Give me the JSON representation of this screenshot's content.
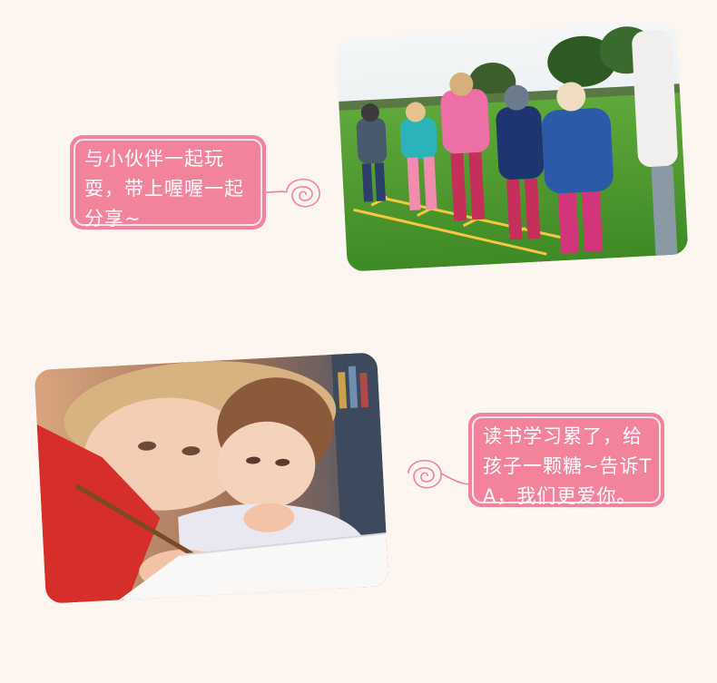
{
  "section1": {
    "bubble_text": "与小伙伴一起玩耍，带上喔喔一起分享~",
    "photo_alt": "children-playing-agility-ladder",
    "icon": "swirl-icon"
  },
  "section2": {
    "bubble_text": "读书学习累了，给孩子一颗糖~告诉TA，我们更爱你。",
    "photo_alt": "children-reading-writing",
    "icon": "swirl-icon"
  },
  "colors": {
    "background": "#fdf5ef",
    "bubble": "#f3829b",
    "photo_shadow": "#f9d3dc",
    "swirl": "#f3829b"
  }
}
